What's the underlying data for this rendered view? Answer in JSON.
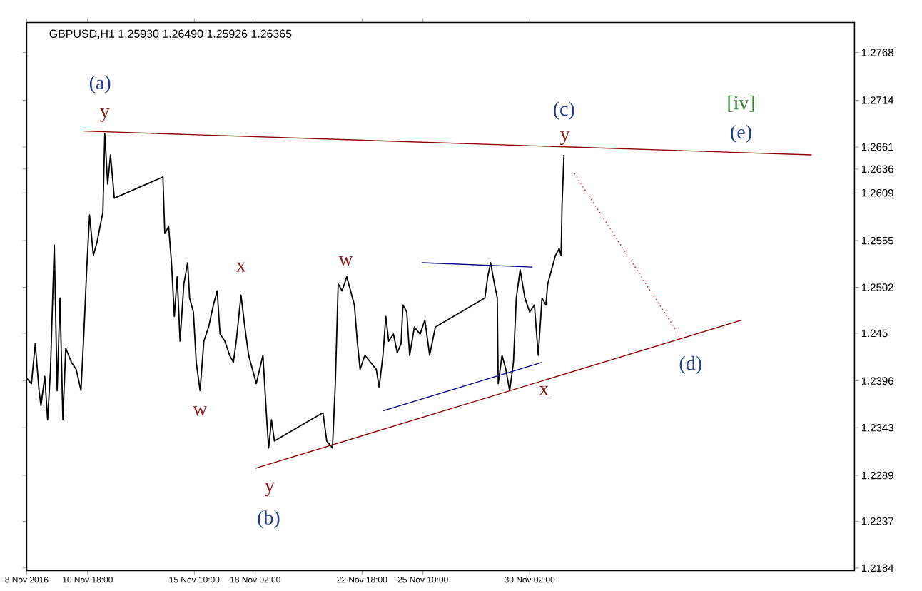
{
  "chart_data": {
    "type": "line",
    "title": "GBPUSD,H1  1.25930 1.26490 1.25926 1.26365",
    "xlim": [
      "2016-11-08T02:00",
      "2016-12-14T07:00"
    ],
    "ylim": [
      1.2181,
      1.2802
    ],
    "xticks": [
      {
        "value": "2016-11-08T02:00",
        "label": "8 Nov 2016"
      },
      {
        "value": "2016-11-10T18:00",
        "label": "10 Nov 18:00"
      },
      {
        "value": "2016-11-15T10:00",
        "label": "15 Nov 10:00"
      },
      {
        "value": "2016-11-18T02:00",
        "label": "18 Nov 02:00"
      },
      {
        "value": "2016-11-22T18:00",
        "label": "22 Nov 18:00"
      },
      {
        "value": "2016-11-25T10:00",
        "label": "25 Nov 10:00"
      },
      {
        "value": "2016-11-30T02:00",
        "label": "30 Nov 02:00"
      }
    ],
    "yticks": [
      1.2184,
      1.2237,
      1.2289,
      1.2343,
      1.2396,
      1.245,
      1.2502,
      1.2555,
      1.2609,
      1.2636,
      1.2661,
      1.2714,
      1.2768
    ],
    "series": [
      {
        "color": "#000000",
        "x": [
          "2016-11-08T02:00",
          "2016-11-08T07:00",
          "2016-11-08T11:00",
          "2016-11-08T15:00",
          "2016-11-08T17:00",
          "2016-11-08T21:00",
          "2016-11-09T00:00",
          "2016-11-09T03:00",
          "2016-11-09T07:00",
          "2016-11-09T10:00",
          "2016-11-09T13:00",
          "2016-11-09T16:00",
          "2016-11-09T19:00",
          "2016-11-10T01:00",
          "2016-11-10T06:00",
          "2016-11-10T11:00",
          "2016-11-10T14:00",
          "2016-11-10T17:00",
          "2016-11-10T20:00",
          "2016-11-11T00:00",
          "2016-11-11T04:00",
          "2016-11-11T07:00",
          "2016-11-11T10:00",
          "2016-11-11T12:00",
          "2016-11-11T15:00",
          "2016-11-11T18:00",
          "2016-11-11T22:00",
          "2016-11-14T01:00",
          "2016-11-14T03:00",
          "2016-11-14T07:00",
          "2016-11-14T10:00",
          "2016-11-14T13:00",
          "2016-11-14T16:00",
          "2016-11-14T19:00",
          "2016-11-14T23:00",
          "2016-11-15T03:00",
          "2016-11-15T05:00",
          "2016-11-15T09:00",
          "2016-11-15T12:00",
          "2016-11-15T16:00",
          "2016-11-15T20:00",
          "2016-11-16T01:00",
          "2016-11-16T06:00",
          "2016-11-16T10:00",
          "2016-11-16T13:00",
          "2016-11-16T18:00",
          "2016-11-16T23:00",
          "2016-11-17T03:00",
          "2016-11-17T06:00",
          "2016-11-17T11:00",
          "2016-11-17T15:00",
          "2016-11-17T19:00",
          "2016-11-17T23:00",
          "2016-11-18T03:00",
          "2016-11-18T10:00",
          "2016-11-18T14:00",
          "2016-11-18T16:00",
          "2016-11-18T19:00",
          "2016-11-18T22:00",
          "2016-11-21T01:00",
          "2016-11-21T05:00",
          "2016-11-21T11:00",
          "2016-11-21T14:00",
          "2016-11-21T17:00",
          "2016-11-21T21:00",
          "2016-11-22T02:00",
          "2016-11-22T06:00",
          "2016-11-22T10:00",
          "2016-11-22T13:00",
          "2016-11-22T16:00",
          "2016-11-22T21:00",
          "2016-11-23T03:00",
          "2016-11-23T09:00",
          "2016-11-23T12:00",
          "2016-11-23T16:00",
          "2016-11-23T19:00",
          "2016-11-23T22:00",
          "2016-11-24T03:00",
          "2016-11-24T07:00",
          "2016-11-24T11:00",
          "2016-11-24T13:00",
          "2016-11-24T17:00",
          "2016-11-24T20:00",
          "2016-11-25T01:00",
          "2016-11-25T07:00",
          "2016-11-25T12:00",
          "2016-11-25T17:00",
          "2016-11-25T23:00",
          "2016-11-28T03:00",
          "2016-11-28T06:00",
          "2016-11-28T09:00",
          "2016-11-28T13:00",
          "2016-11-28T16:00",
          "2016-11-28T17:00",
          "2016-11-28T21:00",
          "2016-11-29T01:00",
          "2016-11-29T05:00",
          "2016-11-29T09:00",
          "2016-11-29T12:00",
          "2016-11-29T16:00",
          "2016-11-29T21:00",
          "2016-11-30T02:00",
          "2016-11-30T07:00",
          "2016-11-30T11:00",
          "2016-11-30T15:00",
          "2016-11-30T19:00",
          "2016-11-30T21:00",
          "2016-12-01T01:00",
          "2016-12-01T05:00",
          "2016-12-01T09:00",
          "2016-12-01T11:00",
          "2016-12-01T12:00",
          "2016-12-01T14:00"
        ],
        "values": [
          1.2399,
          1.2393,
          1.2438,
          1.2385,
          1.2368,
          1.2401,
          1.2352,
          1.2409,
          1.255,
          1.2385,
          1.249,
          1.2352,
          1.2433,
          1.2417,
          1.2409,
          1.2385,
          1.2449,
          1.2522,
          1.2584,
          1.2538,
          1.2554,
          1.2571,
          1.2587,
          1.2676,
          1.2619,
          1.2652,
          1.2603,
          1.2627,
          1.2563,
          1.2571,
          1.253,
          1.2469,
          1.2514,
          1.2441,
          1.2506,
          1.253,
          1.249,
          1.2474,
          1.2417,
          1.2385,
          1.2441,
          1.2457,
          1.2482,
          1.2498,
          1.2449,
          1.2441,
          1.2425,
          1.2417,
          1.2441,
          1.2493,
          1.2457,
          1.2425,
          1.2409,
          1.2393,
          1.2425,
          1.2352,
          1.232,
          1.2352,
          1.2328,
          1.236,
          1.2328,
          1.232,
          1.2393,
          1.2506,
          1.2498,
          1.2514,
          1.2498,
          1.2482,
          1.2441,
          1.2409,
          1.2425,
          1.2417,
          1.2409,
          1.2389,
          1.2425,
          1.2469,
          1.2441,
          1.2449,
          1.2428,
          1.2438,
          1.2482,
          1.2474,
          1.2425,
          1.2457,
          1.2449,
          1.2465,
          1.2425,
          1.2457,
          1.249,
          1.2514,
          1.253,
          1.2506,
          1.249,
          1.2393,
          1.2425,
          1.2409,
          1.2385,
          1.2417,
          1.249,
          1.2522,
          1.249,
          1.2474,
          1.2482,
          1.2425,
          1.249,
          1.2482,
          1.2506,
          1.2522,
          1.2538,
          1.2546,
          1.2538,
          1.2595,
          1.2652
        ]
      },
      {
        "color": "#8b0000",
        "x": [
          "2016-11-10T14:00",
          "2016-12-12T10:00"
        ],
        "values": [
          1.2679,
          1.2652
        ]
      },
      {
        "color": "#8b0000",
        "x": [
          "2016-11-18T02:00",
          "2016-12-09T09:00"
        ],
        "values": [
          1.2297,
          1.2465
        ]
      },
      {
        "color": "#000080",
        "x": [
          "2016-11-25T09:00",
          "2016-11-30T05:00"
        ],
        "values": [
          1.253,
          1.2525
        ]
      },
      {
        "color": "#000080",
        "x": [
          "2016-11-23T16:00",
          "2016-11-30T15:00"
        ],
        "values": [
          1.2362,
          1.2417
        ]
      },
      {
        "color": "#ff0000",
        "line_style": "dotted",
        "x": [
          "2016-12-02T01:00",
          "2016-12-06T19:00"
        ],
        "values": [
          1.2631,
          1.2441
        ]
      }
    ],
    "annotations": [
      "(a)",
      "y",
      "x",
      "w",
      "w",
      "y",
      "(b)",
      "x",
      "(c)",
      "y",
      "[iv]",
      "(e)",
      "(d)"
    ]
  }
}
